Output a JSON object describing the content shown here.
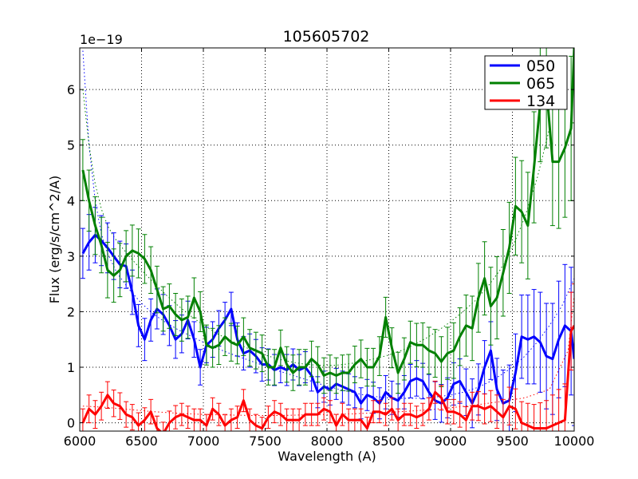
{
  "chart_data": {
    "type": "line",
    "title": "105605702",
    "xlabel": "Wavelength (A)",
    "ylabel": "Flux (erg/s/cm^2/A)",
    "y_offset_text": "1e−19",
    "xlim": [
      6000,
      10000
    ],
    "ylim": [
      -0.15,
      6.75
    ],
    "xticks": [
      6000,
      6500,
      7000,
      7500,
      8000,
      8500,
      9000,
      9500,
      10000
    ],
    "yticks": [
      0,
      1,
      2,
      3,
      4,
      5,
      6
    ],
    "grid": true,
    "legend_position": "top-right",
    "series": [
      {
        "name": "050",
        "color": "#0000ff",
        "x": [
          6025,
          6075,
          6125,
          6175,
          6225,
          6275,
          6325,
          6375,
          6425,
          6475,
          6525,
          6575,
          6625,
          6675,
          6725,
          6775,
          6825,
          6875,
          6925,
          6975,
          7025,
          7075,
          7125,
          7175,
          7225,
          7275,
          7325,
          7375,
          7425,
          7475,
          7525,
          7575,
          7625,
          7675,
          7725,
          7775,
          7825,
          7875,
          7925,
          7975,
          8025,
          8075,
          8125,
          8175,
          8225,
          8275,
          8325,
          8375,
          8425,
          8475,
          8525,
          8575,
          8625,
          8675,
          8725,
          8775,
          8825,
          8875,
          8925,
          8975,
          9025,
          9075,
          9125,
          9175,
          9225,
          9275,
          9325,
          9375,
          9425,
          9475,
          9525,
          9575,
          9625,
          9675,
          9725,
          9775,
          9825,
          9875,
          9925,
          9975,
          10000
        ],
        "y": [
          3.05,
          3.25,
          3.38,
          3.28,
          3.15,
          3.0,
          2.85,
          2.82,
          2.35,
          1.75,
          1.5,
          1.85,
          2.05,
          1.95,
          1.75,
          1.5,
          1.6,
          1.85,
          1.5,
          1.0,
          1.4,
          1.5,
          1.7,
          1.85,
          2.05,
          1.5,
          1.25,
          1.3,
          1.2,
          1.05,
          1.05,
          0.95,
          1.0,
          0.95,
          1.05,
          0.95,
          1.0,
          0.85,
          0.55,
          0.65,
          0.6,
          0.7,
          0.65,
          0.6,
          0.55,
          0.35,
          0.5,
          0.45,
          0.35,
          0.55,
          0.45,
          0.4,
          0.55,
          0.75,
          0.8,
          0.75,
          0.55,
          0.4,
          0.35,
          0.45,
          0.7,
          0.75,
          0.55,
          0.35,
          0.6,
          1.0,
          1.3,
          0.6,
          0.35,
          0.4,
          0.9,
          1.55,
          1.5,
          1.55,
          1.45,
          1.2,
          1.15,
          1.5,
          1.75,
          1.65,
          1.15
        ],
        "yerr": [
          0.45,
          0.5,
          0.5,
          0.45,
          0.45,
          0.42,
          0.42,
          0.4,
          0.4,
          0.38,
          0.38,
          0.38,
          0.36,
          0.36,
          0.36,
          0.34,
          0.34,
          0.34,
          0.32,
          0.32,
          0.32,
          0.32,
          0.32,
          0.32,
          0.3,
          0.3,
          0.3,
          0.3,
          0.3,
          0.3,
          0.28,
          0.28,
          0.28,
          0.28,
          0.28,
          0.28,
          0.28,
          0.28,
          0.28,
          0.28,
          0.28,
          0.28,
          0.28,
          0.28,
          0.28,
          0.28,
          0.28,
          0.28,
          0.28,
          0.3,
          0.3,
          0.3,
          0.3,
          0.3,
          0.32,
          0.32,
          0.32,
          0.34,
          0.34,
          0.36,
          0.38,
          0.4,
          0.42,
          0.44,
          0.46,
          0.48,
          0.52,
          0.56,
          0.6,
          0.64,
          0.7,
          0.75,
          0.8,
          0.85,
          0.9,
          0.95,
          1.0,
          1.05,
          1.1,
          1.15,
          1.2
        ]
      },
      {
        "name": "065",
        "color": "#008000",
        "x": [
          6025,
          6075,
          6125,
          6175,
          6225,
          6275,
          6325,
          6375,
          6425,
          6475,
          6525,
          6575,
          6625,
          6675,
          6725,
          6775,
          6825,
          6875,
          6925,
          6975,
          7025,
          7075,
          7125,
          7175,
          7225,
          7275,
          7325,
          7375,
          7425,
          7475,
          7525,
          7575,
          7625,
          7675,
          7725,
          7775,
          7825,
          7875,
          7925,
          7975,
          8025,
          8075,
          8125,
          8175,
          8225,
          8275,
          8325,
          8375,
          8425,
          8475,
          8525,
          8575,
          8625,
          8675,
          8725,
          8775,
          8825,
          8875,
          8925,
          8975,
          9025,
          9075,
          9125,
          9175,
          9225,
          9275,
          9325,
          9375,
          9425,
          9475,
          9525,
          9575,
          9625,
          9675,
          9725,
          9775,
          9825,
          9875,
          9925,
          9975,
          10000
        ],
        "y": [
          4.55,
          4.0,
          3.55,
          3.2,
          2.75,
          2.65,
          2.75,
          3.0,
          3.1,
          3.05,
          2.95,
          2.75,
          2.4,
          2.05,
          2.1,
          1.95,
          1.85,
          1.9,
          2.25,
          2.0,
          1.4,
          1.35,
          1.4,
          1.55,
          1.45,
          1.4,
          1.55,
          1.35,
          1.3,
          1.25,
          1.0,
          1.0,
          1.35,
          1.05,
          0.9,
          1.0,
          1.0,
          1.15,
          1.05,
          0.85,
          0.9,
          0.85,
          0.9,
          0.9,
          1.05,
          1.15,
          1.0,
          1.0,
          1.2,
          1.9,
          1.35,
          0.9,
          1.15,
          1.45,
          1.4,
          1.4,
          1.3,
          1.25,
          1.1,
          1.25,
          1.3,
          1.55,
          1.75,
          1.7,
          2.25,
          2.6,
          2.1,
          2.25,
          2.7,
          3.15,
          3.9,
          3.8,
          3.55,
          4.6,
          5.75,
          6.05,
          4.7,
          4.7,
          4.95,
          5.3,
          6.75
        ],
        "yerr": [
          0.55,
          0.55,
          0.52,
          0.5,
          0.5,
          0.48,
          0.48,
          0.46,
          0.46,
          0.44,
          0.44,
          0.42,
          0.42,
          0.4,
          0.4,
          0.38,
          0.38,
          0.38,
          0.36,
          0.36,
          0.36,
          0.35,
          0.35,
          0.34,
          0.34,
          0.34,
          0.34,
          0.33,
          0.33,
          0.33,
          0.32,
          0.32,
          0.32,
          0.32,
          0.32,
          0.32,
          0.32,
          0.32,
          0.32,
          0.32,
          0.32,
          0.32,
          0.32,
          0.33,
          0.33,
          0.34,
          0.34,
          0.34,
          0.35,
          0.36,
          0.36,
          0.37,
          0.38,
          0.38,
          0.39,
          0.4,
          0.42,
          0.43,
          0.45,
          0.47,
          0.5,
          0.52,
          0.55,
          0.58,
          0.62,
          0.66,
          0.7,
          0.74,
          0.78,
          0.82,
          0.88,
          0.92,
          0.96,
          1.0,
          1.05,
          1.1,
          1.15,
          1.2,
          1.25,
          1.3,
          1.35
        ]
      },
      {
        "name": "134",
        "color": "#ff0000",
        "x": [
          6025,
          6075,
          6125,
          6175,
          6225,
          6275,
          6325,
          6375,
          6425,
          6475,
          6525,
          6575,
          6625,
          6675,
          6725,
          6775,
          6825,
          6875,
          6925,
          6975,
          7025,
          7075,
          7125,
          7175,
          7225,
          7275,
          7325,
          7375,
          7425,
          7475,
          7525,
          7575,
          7625,
          7675,
          7725,
          7775,
          7825,
          7875,
          7925,
          7975,
          8025,
          8075,
          8125,
          8175,
          8225,
          8275,
          8325,
          8375,
          8425,
          8475,
          8525,
          8575,
          8625,
          8675,
          8725,
          8775,
          8825,
          8875,
          8925,
          8975,
          9025,
          9075,
          9125,
          9175,
          9225,
          9275,
          9325,
          9375,
          9425,
          9475,
          9525,
          9575,
          9625,
          9675,
          9725,
          9775,
          9825,
          9875,
          9925,
          9975,
          10000
        ],
        "y": [
          0.0,
          0.25,
          0.15,
          0.3,
          0.5,
          0.35,
          0.3,
          0.15,
          0.1,
          -0.05,
          0.05,
          0.2,
          -0.1,
          -0.2,
          0.0,
          0.1,
          0.15,
          0.1,
          0.05,
          0.05,
          -0.05,
          0.25,
          0.15,
          -0.05,
          0.05,
          0.1,
          0.4,
          0.05,
          -0.05,
          -0.1,
          0.1,
          0.2,
          0.15,
          0.05,
          0.05,
          0.05,
          0.15,
          0.15,
          0.15,
          0.25,
          0.2,
          -0.05,
          0.15,
          0.05,
          0.05,
          0.05,
          -0.1,
          0.2,
          0.2,
          0.15,
          0.25,
          0.05,
          0.15,
          0.15,
          0.1,
          0.15,
          0.25,
          0.55,
          0.45,
          0.2,
          0.2,
          0.15,
          0.05,
          0.3,
          0.3,
          0.25,
          0.3,
          0.2,
          0.1,
          0.3,
          0.25,
          0.0,
          -0.05,
          -0.1,
          -0.1,
          -0.1,
          -0.05,
          0.0,
          0.05,
          1.65,
          1.75
        ],
        "yerr": [
          0.25,
          0.25,
          0.25,
          0.25,
          0.24,
          0.24,
          0.24,
          0.23,
          0.23,
          0.23,
          0.22,
          0.22,
          0.22,
          0.21,
          0.21,
          0.21,
          0.2,
          0.2,
          0.2,
          0.2,
          0.2,
          0.2,
          0.2,
          0.2,
          0.2,
          0.2,
          0.2,
          0.2,
          0.2,
          0.2,
          0.2,
          0.2,
          0.2,
          0.2,
          0.2,
          0.2,
          0.2,
          0.2,
          0.2,
          0.2,
          0.2,
          0.2,
          0.2,
          0.2,
          0.2,
          0.2,
          0.2,
          0.2,
          0.2,
          0.2,
          0.2,
          0.2,
          0.2,
          0.2,
          0.2,
          0.2,
          0.2,
          0.2,
          0.22,
          0.22,
          0.22,
          0.23,
          0.24,
          0.25,
          0.26,
          0.27,
          0.28,
          0.3,
          0.32,
          0.34,
          0.36,
          0.38,
          0.4,
          0.43,
          0.46,
          0.5,
          0.55,
          0.6,
          0.65,
          0.7,
          0.75
        ]
      }
    ],
    "dotted_models": [
      {
        "name": "050-model",
        "color": "#0000ff",
        "x": [
          6025,
          6075,
          6125,
          6175,
          6225,
          6300,
          6400,
          6500,
          6600,
          6700,
          6800,
          6900,
          7000,
          7100,
          7200,
          7300,
          7400,
          7500,
          7600,
          7700,
          7800,
          7900,
          8000,
          8100,
          8200,
          8300,
          8400,
          8500,
          8600,
          8700,
          8800,
          8900,
          9000,
          9100,
          9200,
          9300,
          9400,
          9500,
          9600,
          9700,
          9800,
          9900,
          9950,
          10000
        ],
        "y": [
          6.7,
          5.0,
          4.0,
          3.4,
          3.05,
          2.7,
          2.4,
          2.15,
          1.95,
          1.8,
          1.67,
          1.56,
          1.45,
          1.35,
          1.26,
          1.18,
          1.1,
          1.02,
          0.94,
          0.87,
          0.8,
          0.73,
          0.66,
          0.6,
          0.55,
          0.5,
          0.47,
          0.45,
          0.44,
          0.44,
          0.45,
          0.47,
          0.5,
          0.55,
          0.62,
          0.72,
          0.85,
          1.0,
          1.2,
          1.45,
          1.75,
          2.1,
          2.35,
          2.6
        ]
      },
      {
        "name": "065-model",
        "color": "#008000",
        "x": [
          6025,
          6075,
          6125,
          6175,
          6225,
          6275,
          6325,
          6400,
          6500,
          6600,
          6700,
          6800,
          6900,
          7000,
          7100,
          7200,
          7300,
          7400,
          7500,
          7600,
          7700,
          7800,
          7900,
          8000,
          8100,
          8200,
          8300,
          8400,
          8500,
          8600,
          8700,
          8800,
          8900,
          9000,
          9100,
          9200,
          9300,
          9400,
          9500,
          9600,
          9700,
          9800
        ],
        "y": [
          6.0,
          5.0,
          4.3,
          3.85,
          3.55,
          3.35,
          3.2,
          3.0,
          2.75,
          2.52,
          2.3,
          2.1,
          1.92,
          1.76,
          1.62,
          1.5,
          1.4,
          1.3,
          1.22,
          1.15,
          1.1,
          1.06,
          1.04,
          1.03,
          1.04,
          1.07,
          1.11,
          1.16,
          1.22,
          1.3,
          1.4,
          1.52,
          1.66,
          1.82,
          2.0,
          2.2,
          2.45,
          2.75,
          3.15,
          3.7,
          4.4,
          5.3
        ]
      },
      {
        "name": "134-model",
        "color": "#ff0000",
        "x": [
          6025,
          6200,
          6400,
          6600,
          6800,
          7000,
          7200,
          7400,
          7600,
          7800,
          8000,
          8200,
          8400,
          8600,
          8800,
          9000,
          9200,
          9400,
          9600,
          9800,
          9950,
          10000
        ],
        "y": [
          0.3,
          0.28,
          0.24,
          0.2,
          0.17,
          0.15,
          0.14,
          0.13,
          0.13,
          0.14,
          0.15,
          0.16,
          0.18,
          0.2,
          0.23,
          0.27,
          0.32,
          0.38,
          0.45,
          0.6,
          1.3,
          2.3
        ]
      }
    ]
  }
}
